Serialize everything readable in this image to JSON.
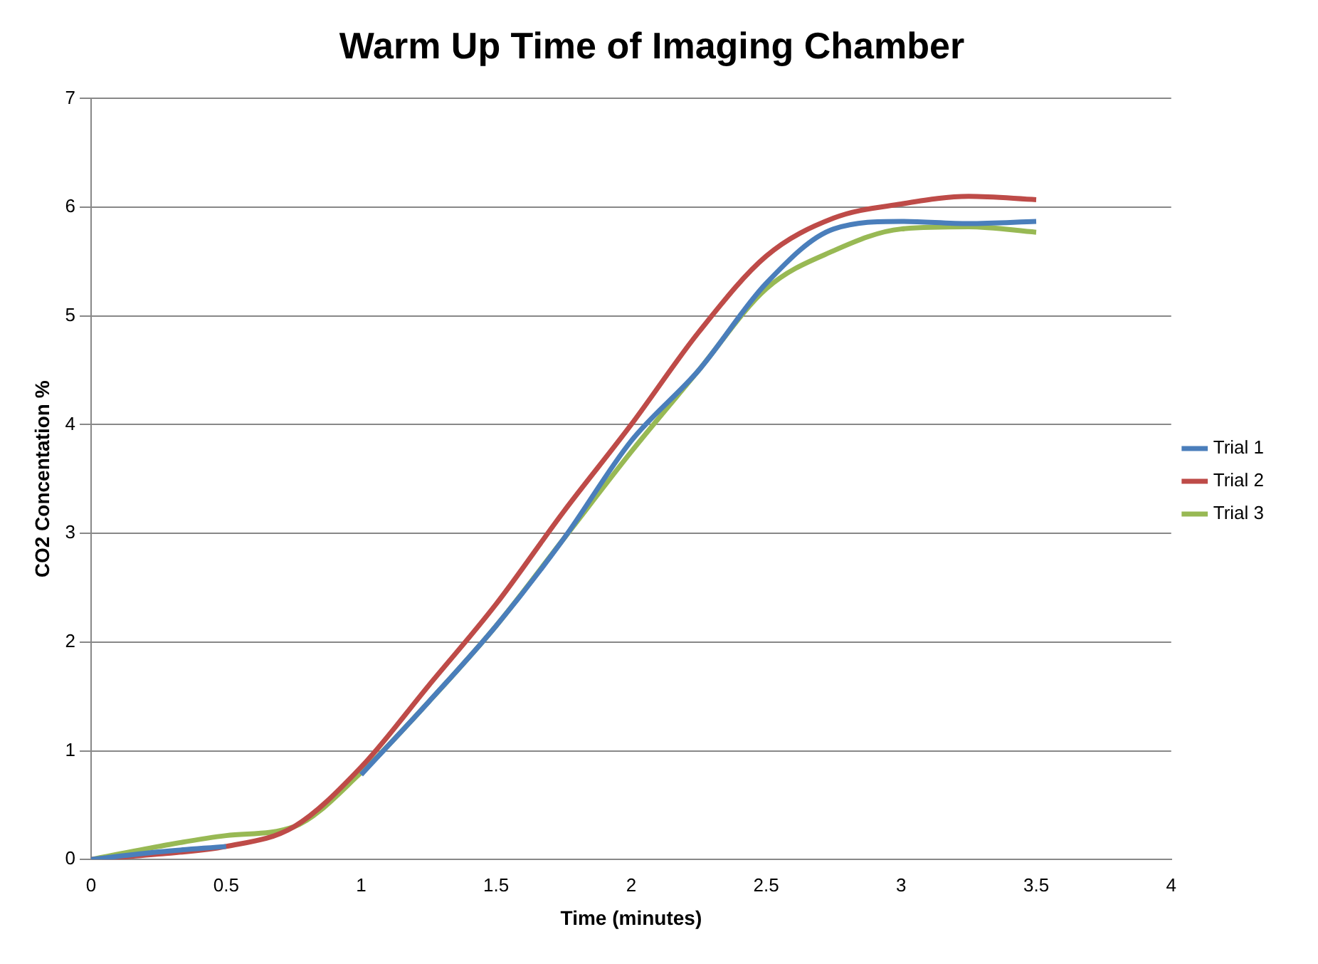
{
  "chart_data": {
    "type": "line",
    "title": "Warm Up Time of Imaging Chamber",
    "xlabel": "Time (minutes)",
    "ylabel": "CO2 Concentation %",
    "x": [
      0,
      0.25,
      0.5,
      0.75,
      1,
      1.25,
      1.5,
      1.75,
      2,
      2.25,
      2.5,
      2.75,
      3,
      3.25,
      3.5
    ],
    "series": [
      {
        "name": "Trial 1",
        "color": "#4a7ebb",
        "values": [
          0,
          0.07,
          0.12,
          null,
          0.78,
          1.45,
          2.15,
          2.95,
          3.85,
          4.5,
          5.3,
          5.8,
          5.87,
          5.85,
          5.87
        ]
      },
      {
        "name": "Trial 2",
        "color": "#be4b48",
        "values": [
          0,
          0.05,
          0.12,
          0.3,
          0.85,
          1.6,
          2.35,
          3.2,
          4.0,
          4.85,
          5.55,
          5.9,
          6.03,
          6.1,
          6.07
        ]
      },
      {
        "name": "Trial 3",
        "color": "#98b954",
        "values": [
          0,
          0.12,
          0.22,
          0.3,
          0.8,
          1.45,
          2.15,
          2.95,
          3.75,
          4.5,
          5.25,
          5.6,
          5.8,
          5.82,
          5.77
        ]
      }
    ],
    "xlim": [
      0,
      4
    ],
    "xticks": [
      0,
      0.5,
      1,
      1.5,
      2,
      2.5,
      3,
      3.5,
      4
    ],
    "ylim": [
      0,
      7
    ],
    "yticks": [
      0,
      1,
      2,
      3,
      4,
      5,
      6,
      7
    ],
    "grid": "y",
    "legend": "right",
    "marker": "none",
    "line_style": "solid"
  }
}
